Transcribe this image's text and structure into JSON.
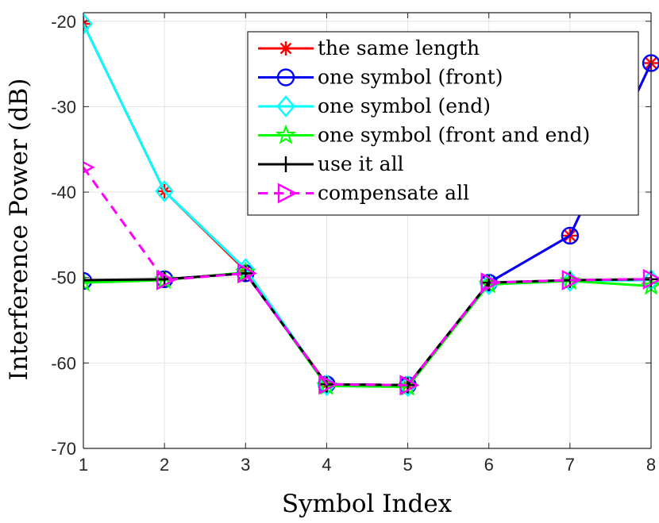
{
  "chart_data": {
    "type": "line",
    "xlabel": "Symbol Index",
    "ylabel": "Interference Power (dB)",
    "x": [
      1,
      2,
      3,
      4,
      5,
      6,
      7,
      8
    ],
    "xlim": [
      1,
      8
    ],
    "ylim": [
      -70,
      -19
    ],
    "xticks": [
      1,
      2,
      3,
      4,
      5,
      6,
      7,
      8
    ],
    "yticks": [
      -70,
      -60,
      -50,
      -40,
      -30,
      -20
    ],
    "grid": true,
    "legend_position": "top-right",
    "series": [
      {
        "name": "the same length",
        "color": "#ff0000",
        "marker": "asterisk",
        "dash": "solid",
        "values": [
          -20.3,
          -39.9,
          -49.2,
          -62.5,
          -62.6,
          -50.6,
          -45.1,
          -24.9
        ]
      },
      {
        "name": "one symbol (front)",
        "color": "#0000ff",
        "marker": "circle",
        "dash": "solid",
        "values": [
          -50.4,
          -50.2,
          -49.5,
          -62.5,
          -62.6,
          -50.6,
          -45.1,
          -24.9
        ]
      },
      {
        "name": "one symbol (end)",
        "color": "#00ffff",
        "marker": "diamond",
        "dash": "solid",
        "values": [
          -20.3,
          -39.9,
          -49.0,
          -62.6,
          -62.7,
          -50.8,
          -50.4,
          -50.3
        ]
      },
      {
        "name": "one symbol (front and end)",
        "color": "#00ff00",
        "marker": "pentagram",
        "dash": "solid",
        "values": [
          -50.6,
          -50.3,
          -49.4,
          -62.7,
          -62.8,
          -50.8,
          -50.4,
          -51.0
        ]
      },
      {
        "name": "use it all",
        "color": "#000000",
        "marker": "plus",
        "dash": "solid",
        "values": [
          -50.3,
          -50.2,
          -49.5,
          -62.5,
          -62.6,
          -50.6,
          -50.3,
          -50.2
        ]
      },
      {
        "name": "compensate all",
        "color": "#ff00ff",
        "marker": "triangle-right",
        "dash": "dashed",
        "values": [
          -37.1,
          -50.3,
          -49.5,
          -62.5,
          -62.6,
          -50.6,
          -50.3,
          -50.2
        ]
      }
    ]
  }
}
